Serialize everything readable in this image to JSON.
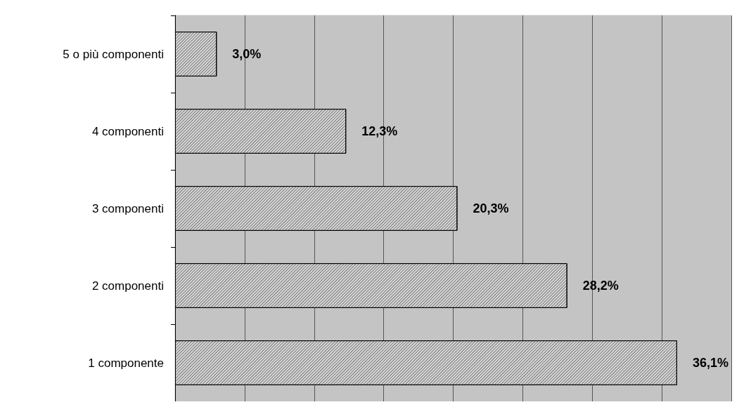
{
  "chart_data": {
    "type": "bar",
    "orientation": "horizontal",
    "categories": [
      "5 o più componenti",
      "4 componenti",
      "3 componenti",
      "2 componenti",
      "1 componente"
    ],
    "values": [
      3.0,
      12.3,
      20.3,
      28.2,
      36.1
    ],
    "value_labels": [
      "3,0%",
      "12,3%",
      "20,3%",
      "28,2%",
      "36,1%"
    ],
    "color": "#d9d9d9",
    "xlim": [
      0,
      40
    ],
    "xticks": [
      {
        "value": 0,
        "label": null
      },
      {
        "value": 5,
        "label": null
      },
      {
        "value": 10,
        "label": null
      },
      {
        "value": 15,
        "label": null
      },
      {
        "value": 20,
        "label": null
      },
      {
        "value": 25,
        "label": null
      },
      {
        "value": 30,
        "label": null
      },
      {
        "value": 35,
        "label": null
      },
      {
        "value": 40,
        "label": null
      }
    ],
    "grid": "x",
    "tick_labels": "y"
  }
}
